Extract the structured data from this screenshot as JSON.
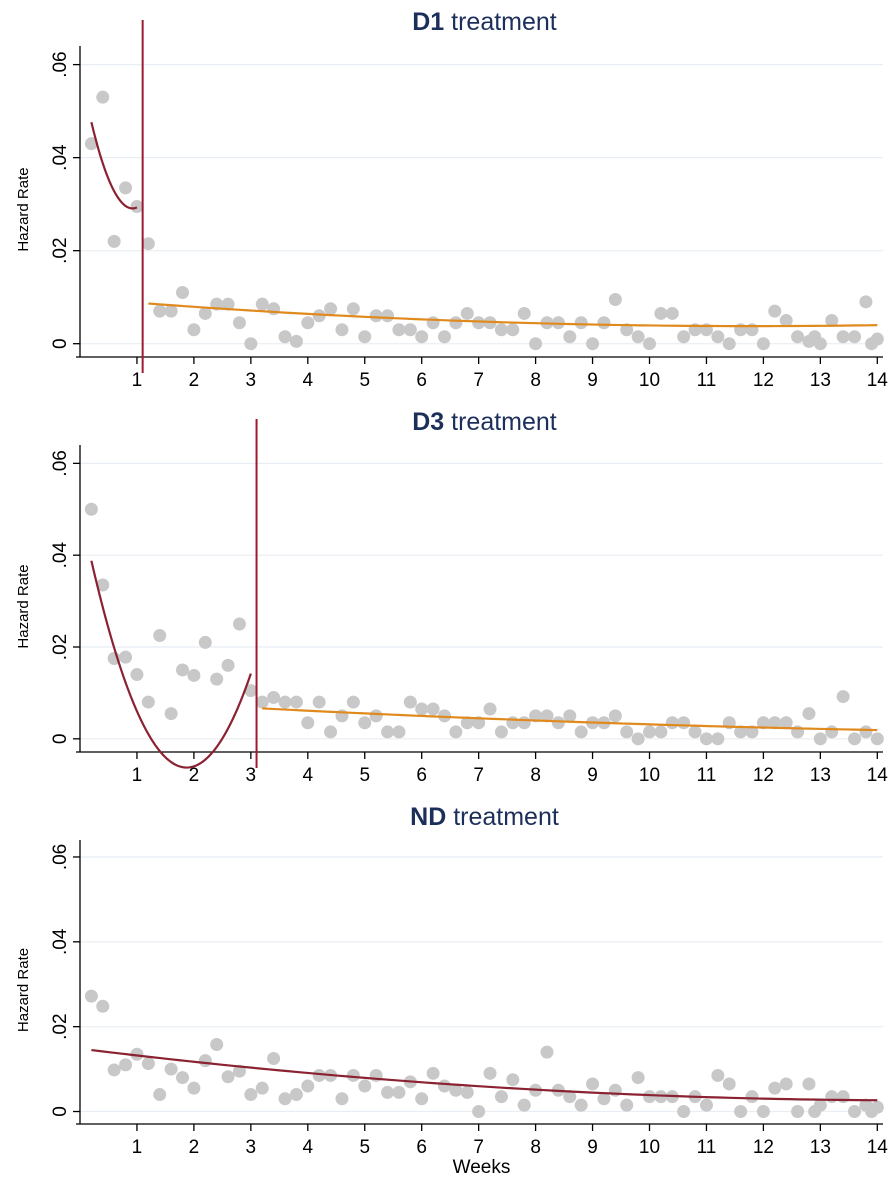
{
  "xlabel": "Weeks",
  "ylabel": "Hazard Rate",
  "colors": {
    "point": "#c8c8c8",
    "first_fit": "#8b2232",
    "second_fit": "#e08a1e",
    "cutoff": "#9b1b30",
    "title": "#1c2e5a",
    "grid": "#e8eef3"
  },
  "chart_data": [
    {
      "type": "scatter",
      "title_bold": "D1",
      "title_rest": " treatment",
      "xlabel": "",
      "ylabel": "Hazard Rate",
      "xlim": [
        0,
        14.1
      ],
      "ylim": [
        -0.002,
        0.064
      ],
      "xticks": [
        1,
        2,
        3,
        4,
        5,
        6,
        7,
        8,
        9,
        10,
        11,
        12,
        13,
        14
      ],
      "yticks": [
        0,
        0.02,
        0.04,
        0.06
      ],
      "ytick_labels": [
        "0",
        ".02",
        ".04",
        ".06"
      ],
      "grid": true,
      "cutoff_week": 1.1,
      "points": {
        "x": [
          0.2,
          0.4,
          0.6,
          0.8,
          1.0,
          1.2,
          1.4,
          1.6,
          1.8,
          2.0,
          2.2,
          2.4,
          2.6,
          2.8,
          3.0,
          3.2,
          3.4,
          3.6,
          3.8,
          4.0,
          4.2,
          4.4,
          4.6,
          4.8,
          5.0,
          5.2,
          5.4,
          5.6,
          5.8,
          6.0,
          6.2,
          6.4,
          6.6,
          6.8,
          7.0,
          7.2,
          7.4,
          7.6,
          7.8,
          8.0,
          8.2,
          8.4,
          8.6,
          8.8,
          9.0,
          9.2,
          9.4,
          9.6,
          9.8,
          10.0,
          10.2,
          10.4,
          10.6,
          10.8,
          11.0,
          11.2,
          11.4,
          11.6,
          11.8,
          12.0,
          12.2,
          12.4,
          12.6,
          12.8,
          12.9,
          13.0,
          13.2,
          13.4,
          13.6,
          13.8,
          13.9,
          14.0
        ],
        "y": [
          0.043,
          0.053,
          0.022,
          0.0335,
          0.0295,
          0.0215,
          0.007,
          0.007,
          0.011,
          0.003,
          0.0065,
          0.0085,
          0.0085,
          0.0045,
          0.0,
          0.0085,
          0.0075,
          0.0015,
          0.0005,
          0.0045,
          0.006,
          0.0075,
          0.003,
          0.0075,
          0.0015,
          0.006,
          0.006,
          0.003,
          0.003,
          0.0015,
          0.0045,
          0.0015,
          0.0045,
          0.0065,
          0.0045,
          0.0045,
          0.003,
          0.003,
          0.0065,
          0.0,
          0.0045,
          0.0045,
          0.0015,
          0.0045,
          0.0,
          0.0045,
          0.0095,
          0.003,
          0.0015,
          0.0,
          0.0065,
          0.0065,
          0.0015,
          0.003,
          0.003,
          0.0015,
          0.0,
          0.003,
          0.003,
          0.0,
          0.007,
          0.005,
          0.0015,
          0.0005,
          0.0015,
          0.0,
          0.005,
          0.0015,
          0.0015,
          0.009,
          0.0,
          0.001
        ]
      },
      "fit_1": {
        "x_range": [
          0.2,
          1.0
        ],
        "coefs": [
          0.0593,
          -0.0655,
          0.0355
        ]
      },
      "fit_2": {
        "x_range": [
          1.2,
          14.0
        ],
        "coefs": [
          0.0098,
          -0.00102,
          4.32e-05
        ]
      }
    },
    {
      "type": "scatter",
      "title_bold": "D3",
      "title_rest": " treatment",
      "xlabel": "",
      "ylabel": "Hazard Rate",
      "xlim": [
        0,
        14.1
      ],
      "ylim": [
        -0.002,
        0.064
      ],
      "xticks": [
        1,
        2,
        3,
        4,
        5,
        6,
        7,
        8,
        9,
        10,
        11,
        12,
        13,
        14
      ],
      "yticks": [
        0,
        0.02,
        0.04,
        0.06
      ],
      "ytick_labels": [
        "0",
        ".02",
        ".04",
        ".06"
      ],
      "grid": true,
      "cutoff_week": 3.1,
      "points": {
        "x": [
          0.2,
          0.4,
          0.6,
          0.8,
          1.0,
          1.2,
          1.4,
          1.6,
          1.8,
          2.0,
          2.2,
          2.4,
          2.6,
          2.8,
          3.0,
          3.2,
          3.4,
          3.6,
          3.8,
          4.0,
          4.2,
          4.4,
          4.6,
          4.8,
          5.0,
          5.2,
          5.4,
          5.6,
          5.8,
          6.0,
          6.2,
          6.4,
          6.6,
          6.8,
          7.0,
          7.2,
          7.4,
          7.6,
          7.8,
          8.0,
          8.2,
          8.4,
          8.6,
          8.8,
          9.0,
          9.2,
          9.4,
          9.6,
          9.8,
          10.0,
          10.2,
          10.4,
          10.6,
          10.8,
          11.0,
          11.2,
          11.4,
          11.6,
          11.8,
          12.0,
          12.2,
          12.4,
          12.6,
          12.8,
          13.0,
          13.2,
          13.4,
          13.6,
          13.8,
          14.0
        ],
        "y": [
          0.05,
          0.0335,
          0.0175,
          0.0178,
          0.014,
          0.008,
          0.0225,
          0.0055,
          0.015,
          0.0138,
          0.021,
          0.013,
          0.016,
          0.025,
          0.0105,
          0.008,
          0.009,
          0.008,
          0.008,
          0.0035,
          0.008,
          0.0015,
          0.005,
          0.008,
          0.0035,
          0.005,
          0.0015,
          0.0015,
          0.008,
          0.0065,
          0.0065,
          0.005,
          0.0015,
          0.0035,
          0.0035,
          0.0065,
          0.0015,
          0.0035,
          0.0035,
          0.005,
          0.005,
          0.0035,
          0.005,
          0.0015,
          0.0035,
          0.0035,
          0.005,
          0.0015,
          0.0,
          0.0015,
          0.0015,
          0.0035,
          0.0035,
          0.0015,
          0.0,
          0.0,
          0.0035,
          0.0015,
          0.0015,
          0.0035,
          0.0035,
          0.0035,
          0.0015,
          0.0055,
          0.0,
          0.0015,
          0.0092,
          0.0,
          0.0015,
          0.0
        ]
      },
      "fit_1": {
        "x_range": [
          0.2,
          3.0
        ],
        "coefs": [
          0.0502,
          -0.0603,
          0.0161
        ]
      },
      "fit_2": {
        "x_range": [
          3.2,
          14.0
        ],
        "coefs": [
          0.00885,
          -0.000755,
          1.85e-05
        ]
      }
    },
    {
      "type": "scatter",
      "title_bold": "ND",
      "title_rest": " treatment",
      "xlabel": "Weeks",
      "ylabel": "Hazard Rate",
      "xlim": [
        0,
        14.1
      ],
      "ylim": [
        -0.002,
        0.064
      ],
      "xticks": [
        1,
        2,
        3,
        4,
        5,
        6,
        7,
        8,
        9,
        10,
        11,
        12,
        13,
        14
      ],
      "yticks": [
        0,
        0.02,
        0.04,
        0.06
      ],
      "ytick_labels": [
        "0",
        ".02",
        ".04",
        ".06"
      ],
      "grid": true,
      "cutoff_week": null,
      "points": {
        "x": [
          0.2,
          0.4,
          0.6,
          0.8,
          1.0,
          1.2,
          1.4,
          1.6,
          1.8,
          2.0,
          2.2,
          2.4,
          2.6,
          2.8,
          3.0,
          3.2,
          3.4,
          3.6,
          3.8,
          4.0,
          4.2,
          4.4,
          4.6,
          4.8,
          5.0,
          5.2,
          5.4,
          5.6,
          5.8,
          6.0,
          6.2,
          6.4,
          6.6,
          6.8,
          7.0,
          7.2,
          7.4,
          7.6,
          7.8,
          8.0,
          8.2,
          8.4,
          8.6,
          8.8,
          9.0,
          9.2,
          9.4,
          9.6,
          9.8,
          10.0,
          10.2,
          10.4,
          10.6,
          10.8,
          11.0,
          11.2,
          11.4,
          11.6,
          11.8,
          12.0,
          12.2,
          12.4,
          12.6,
          12.8,
          12.9,
          13.0,
          13.2,
          13.4,
          13.6,
          13.8,
          13.9,
          14.0
        ],
        "y": [
          0.0272,
          0.0248,
          0.0098,
          0.011,
          0.0135,
          0.0113,
          0.004,
          0.01,
          0.008,
          0.0055,
          0.012,
          0.0158,
          0.0082,
          0.0095,
          0.004,
          0.0055,
          0.0125,
          0.003,
          0.004,
          0.006,
          0.0085,
          0.0085,
          0.003,
          0.0085,
          0.006,
          0.0085,
          0.0045,
          0.0045,
          0.007,
          0.003,
          0.009,
          0.006,
          0.005,
          0.0045,
          0.0,
          0.009,
          0.0035,
          0.0075,
          0.0015,
          0.005,
          0.014,
          0.005,
          0.0035,
          0.0015,
          0.0065,
          0.003,
          0.005,
          0.0015,
          0.008,
          0.0035,
          0.0035,
          0.0035,
          0.0,
          0.0035,
          0.0015,
          0.0085,
          0.0065,
          0.0,
          0.0035,
          0.0,
          0.0055,
          0.0065,
          0.0,
          0.0065,
          0.0,
          0.0015,
          0.0035,
          0.0035,
          0.0,
          0.0015,
          0.0,
          0.001
        ]
      },
      "fit_1": {
        "x_range": [
          0.2,
          14.0
        ],
        "coefs": [
          0.01482,
          -0.00166,
          5.65e-05
        ]
      },
      "fit_2": null
    }
  ]
}
